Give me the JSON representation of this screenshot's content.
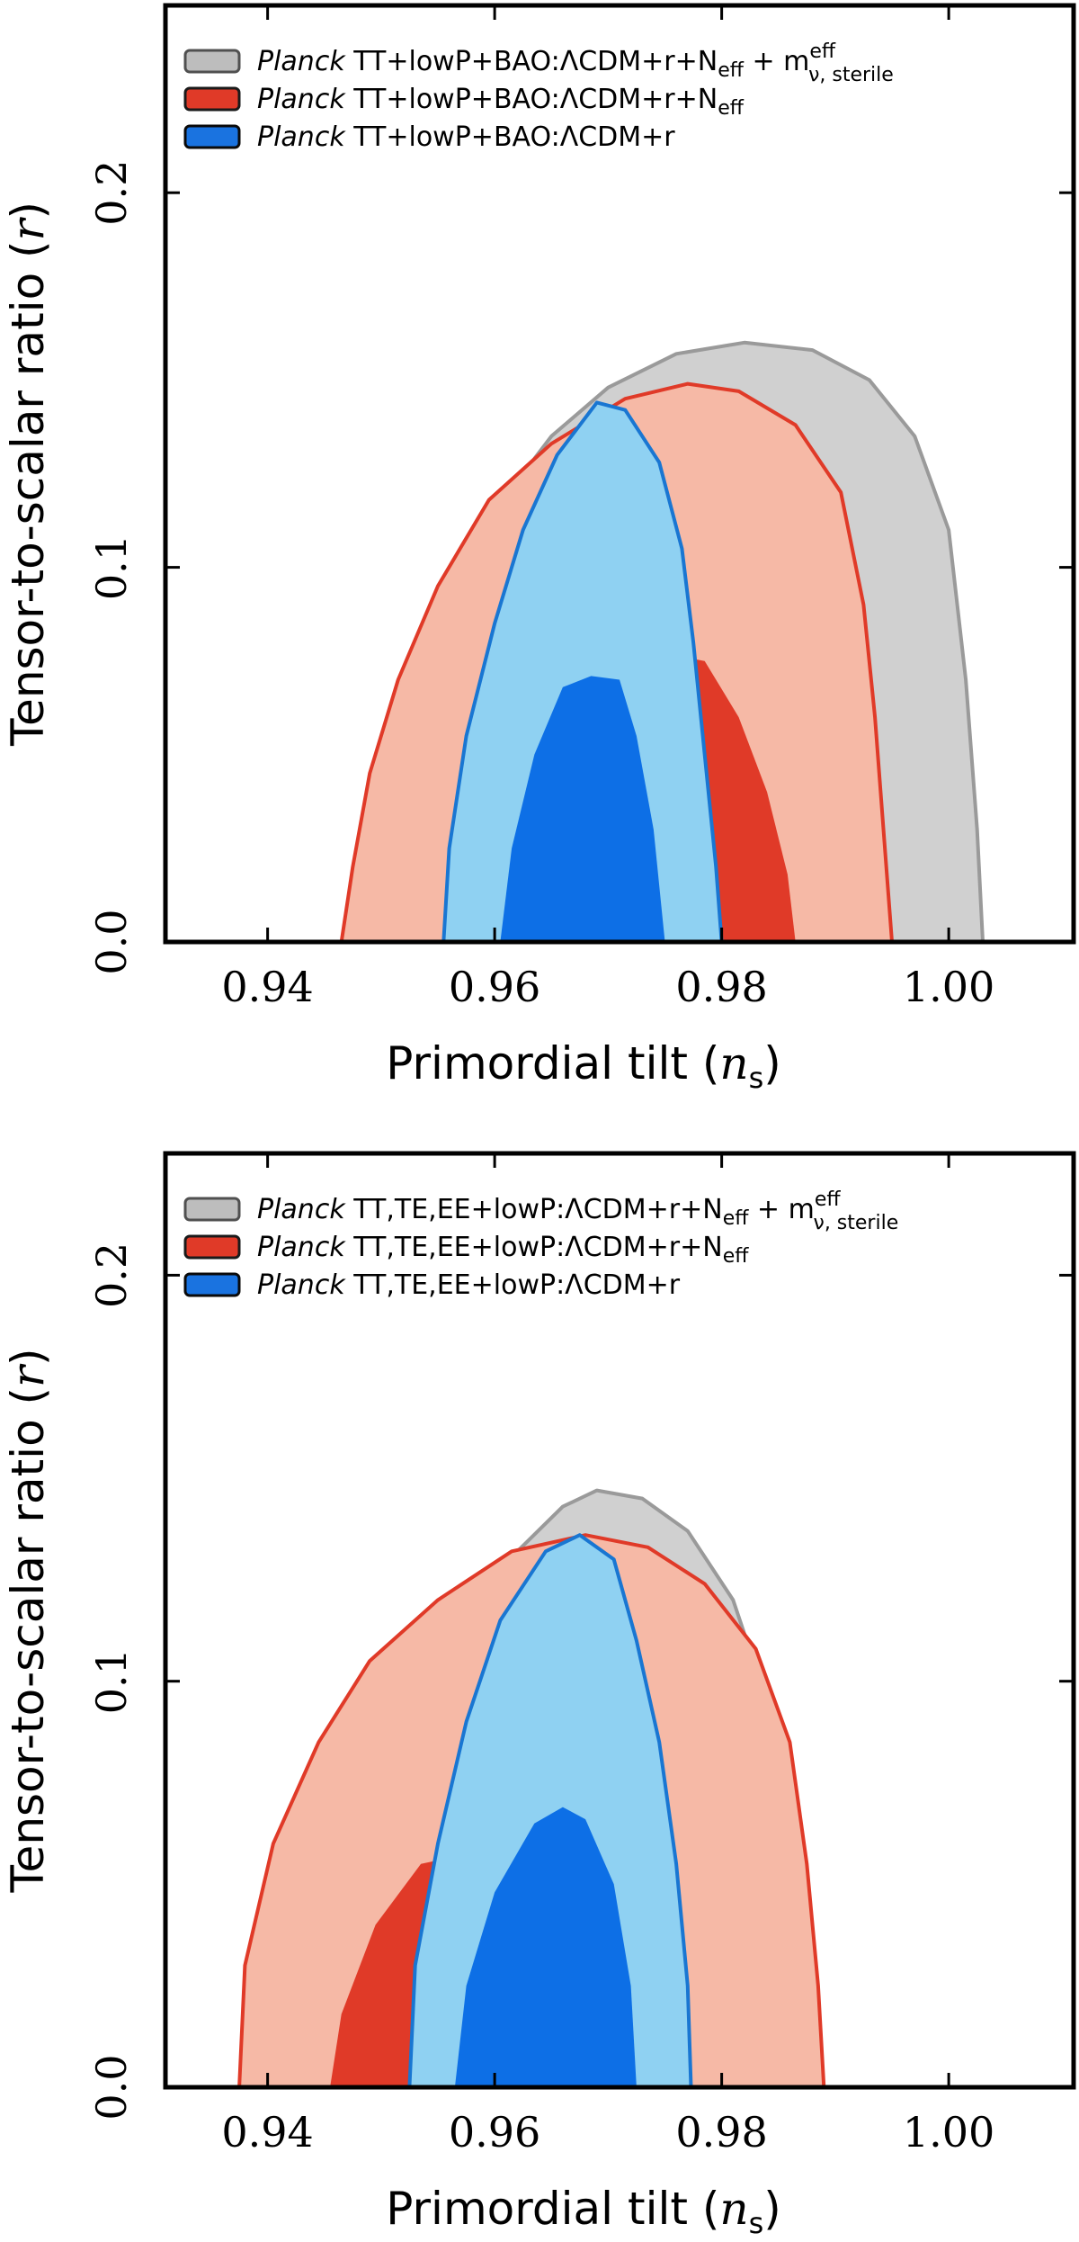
{
  "chart_data": [
    {
      "type": "contour",
      "xlabel": "Primordial tilt",
      "xlabel_symbol": "n",
      "xlabel_sub": "s",
      "ylabel": "Tensor-to-scalar ratio",
      "ylabel_symbol": "r",
      "xlim": [
        0.931,
        1.011
      ],
      "ylim": [
        0.0,
        0.25
      ],
      "xticks": [
        "0.94",
        "0.96",
        "0.98",
        "1.00"
      ],
      "xtick_values": [
        0.94,
        0.96,
        0.98,
        1.0
      ],
      "yticks": [
        "0.0",
        "0.1",
        "0.2"
      ],
      "ytick_values": [
        0.0,
        0.1,
        0.2
      ],
      "legend_position": "top-left",
      "legend": [
        {
          "prefix": "Planck",
          "text": "TT+lowP+BAO:ΛCDM+r+N",
          "sub": "eff",
          "extra": " + m",
          "extra_sup": "eff",
          "extra_sub": "ν, sterile",
          "color": "#bdbdbd",
          "edge": "#505050"
        },
        {
          "prefix": "Planck",
          "text": "TT+lowP+BAO:ΛCDM+r+N",
          "sub": "eff",
          "color": "#e03a28",
          "edge": "#1a1a1a"
        },
        {
          "prefix": "Planck",
          "text": "TT+lowP+BAO:ΛCDM+r",
          "sub": "",
          "color": "#1a73e0",
          "edge": "#0a0a0a"
        }
      ],
      "series": [
        {
          "name": "grey",
          "color_outer": "#d0d0d0",
          "color_inner": "#a0a0a0",
          "edge": "#9a9a9a",
          "outer": [
            [
              0.9506,
              0.0
            ],
            [
              0.9515,
              0.035
            ],
            [
              0.953,
              0.065
            ],
            [
              0.956,
              0.092
            ],
            [
              0.96,
              0.115
            ],
            [
              0.965,
              0.135
            ],
            [
              0.97,
              0.148
            ],
            [
              0.976,
              0.157
            ],
            [
              0.982,
              0.16
            ],
            [
              0.988,
              0.158
            ],
            [
              0.993,
              0.15
            ],
            [
              0.997,
              0.135
            ],
            [
              1.0,
              0.11
            ],
            [
              1.0015,
              0.07
            ],
            [
              1.0025,
              0.03
            ],
            [
              1.003,
              0.0
            ]
          ],
          "inner": []
        },
        {
          "name": "red",
          "color_outer": "#f6b9a6",
          "color_inner": "#e03a28",
          "edge": "#e03a28",
          "outer": [
            [
              0.9465,
              0.0
            ],
            [
              0.9475,
              0.02
            ],
            [
              0.949,
              0.045
            ],
            [
              0.9515,
              0.07
            ],
            [
              0.955,
              0.095
            ],
            [
              0.9595,
              0.118
            ],
            [
              0.965,
              0.133
            ],
            [
              0.9715,
              0.145
            ],
            [
              0.977,
              0.149
            ],
            [
              0.9815,
              0.147
            ],
            [
              0.9865,
              0.138
            ],
            [
              0.9905,
              0.12
            ],
            [
              0.9925,
              0.09
            ],
            [
              0.9935,
              0.06
            ],
            [
              0.9945,
              0.02
            ],
            [
              0.995,
              0.0
            ]
          ],
          "inner": [
            [
              0.9685,
              0.0
            ],
            [
              0.969,
              0.04
            ],
            [
              0.9715,
              0.068
            ],
            [
              0.975,
              0.077
            ],
            [
              0.9785,
              0.075
            ],
            [
              0.9815,
              0.06
            ],
            [
              0.984,
              0.04
            ],
            [
              0.9858,
              0.018
            ],
            [
              0.9865,
              0.0
            ]
          ]
        },
        {
          "name": "blue",
          "color_outer": "#8fd1f2",
          "color_inner": "#0d6fe6",
          "edge": "#1976d2",
          "outer": [
            [
              0.9555,
              0.0
            ],
            [
              0.956,
              0.025
            ],
            [
              0.9575,
              0.055
            ],
            [
              0.96,
              0.085
            ],
            [
              0.9625,
              0.11
            ],
            [
              0.9655,
              0.13
            ],
            [
              0.969,
              0.144
            ],
            [
              0.9715,
              0.142
            ],
            [
              0.9745,
              0.128
            ],
            [
              0.9765,
              0.105
            ],
            [
              0.9775,
              0.08
            ],
            [
              0.9785,
              0.05
            ],
            [
              0.9795,
              0.02
            ],
            [
              0.98,
              0.0
            ]
          ],
          "inner": [
            [
              0.9605,
              0.0
            ],
            [
              0.9615,
              0.025
            ],
            [
              0.9635,
              0.05
            ],
            [
              0.966,
              0.068
            ],
            [
              0.9685,
              0.071
            ],
            [
              0.971,
              0.07
            ],
            [
              0.9725,
              0.055
            ],
            [
              0.974,
              0.03
            ],
            [
              0.975,
              0.0
            ]
          ]
        }
      ]
    },
    {
      "type": "contour",
      "xlabel": "Primordial tilt",
      "xlabel_symbol": "n",
      "xlabel_sub": "s",
      "ylabel": "Tensor-to-scalar ratio",
      "ylabel_symbol": "r",
      "xlim": [
        0.931,
        1.011
      ],
      "ylim": [
        0.0,
        0.23
      ],
      "xticks": [
        "0.94",
        "0.96",
        "0.98",
        "1.00"
      ],
      "xtick_values": [
        0.94,
        0.96,
        0.98,
        1.0
      ],
      "yticks": [
        "0.0",
        "0.1",
        "0.2"
      ],
      "ytick_values": [
        0.0,
        0.1,
        0.2
      ],
      "legend_position": "top-left",
      "legend": [
        {
          "prefix": "Planck",
          "text": "TT,TE,EE+lowP:ΛCDM+r+N",
          "sub": "eff",
          "extra": " + m",
          "extra_sup": "eff",
          "extra_sub": "ν, sterile",
          "color": "#bdbdbd",
          "edge": "#505050"
        },
        {
          "prefix": "Planck",
          "text": "TT,TE,EE+lowP:ΛCDM+r+N",
          "sub": "eff",
          "color": "#e03a28",
          "edge": "#1a1a1a"
        },
        {
          "prefix": "Planck",
          "text": "TT,TE,EE+lowP:ΛCDM+r",
          "sub": "",
          "color": "#1a73e0",
          "edge": "#0a0a0a"
        }
      ],
      "series": [
        {
          "name": "grey",
          "color_outer": "#d0d0d0",
          "color_inner": "#a0a0a0",
          "edge": "#9a9a9a",
          "outer": [
            [
              0.9505,
              0.0
            ],
            [
              0.9515,
              0.03
            ],
            [
              0.953,
              0.06
            ],
            [
              0.955,
              0.09
            ],
            [
              0.958,
              0.115
            ],
            [
              0.962,
              0.132
            ],
            [
              0.966,
              0.143
            ],
            [
              0.969,
              0.147
            ],
            [
              0.973,
              0.145
            ],
            [
              0.977,
              0.137
            ],
            [
              0.981,
              0.12
            ],
            [
              0.984,
              0.095
            ],
            [
              0.9855,
              0.065
            ],
            [
              0.9865,
              0.035
            ],
            [
              0.9872,
              0.0
            ]
          ],
          "inner": []
        },
        {
          "name": "red",
          "color_outer": "#f6b9a6",
          "color_inner": "#e03a28",
          "edge": "#e03a28",
          "outer": [
            [
              0.9375,
              0.0
            ],
            [
              0.938,
              0.03
            ],
            [
              0.9405,
              0.06
            ],
            [
              0.9445,
              0.085
            ],
            [
              0.949,
              0.105
            ],
            [
              0.955,
              0.12
            ],
            [
              0.9615,
              0.132
            ],
            [
              0.968,
              0.136
            ],
            [
              0.9735,
              0.133
            ],
            [
              0.9785,
              0.124
            ],
            [
              0.983,
              0.108
            ],
            [
              0.986,
              0.085
            ],
            [
              0.9875,
              0.055
            ],
            [
              0.9885,
              0.025
            ],
            [
              0.989,
              0.0
            ]
          ],
          "inner": [
            [
              0.9455,
              0.0
            ],
            [
              0.9465,
              0.018
            ],
            [
              0.9495,
              0.04
            ],
            [
              0.9535,
              0.055
            ],
            [
              0.9585,
              0.058
            ],
            [
              0.9635,
              0.055
            ],
            [
              0.9675,
              0.045
            ],
            [
              0.9705,
              0.025
            ],
            [
              0.9718,
              0.0
            ]
          ]
        },
        {
          "name": "blue",
          "color_outer": "#8fd1f2",
          "color_inner": "#0d6fe6",
          "edge": "#1976d2",
          "outer": [
            [
              0.9525,
              0.0
            ],
            [
              0.953,
              0.03
            ],
            [
              0.955,
              0.06
            ],
            [
              0.9575,
              0.09
            ],
            [
              0.9605,
              0.115
            ],
            [
              0.9645,
              0.132
            ],
            [
              0.9675,
              0.136
            ],
            [
              0.9705,
              0.13
            ],
            [
              0.9725,
              0.11
            ],
            [
              0.9745,
              0.085
            ],
            [
              0.976,
              0.055
            ],
            [
              0.977,
              0.025
            ],
            [
              0.9773,
              0.0
            ]
          ],
          "inner": [
            [
              0.9565,
              0.0
            ],
            [
              0.9575,
              0.025
            ],
            [
              0.96,
              0.048
            ],
            [
              0.9635,
              0.065
            ],
            [
              0.966,
              0.069
            ],
            [
              0.968,
              0.066
            ],
            [
              0.9705,
              0.05
            ],
            [
              0.972,
              0.025
            ],
            [
              0.9725,
              0.0
            ]
          ]
        }
      ]
    }
  ]
}
